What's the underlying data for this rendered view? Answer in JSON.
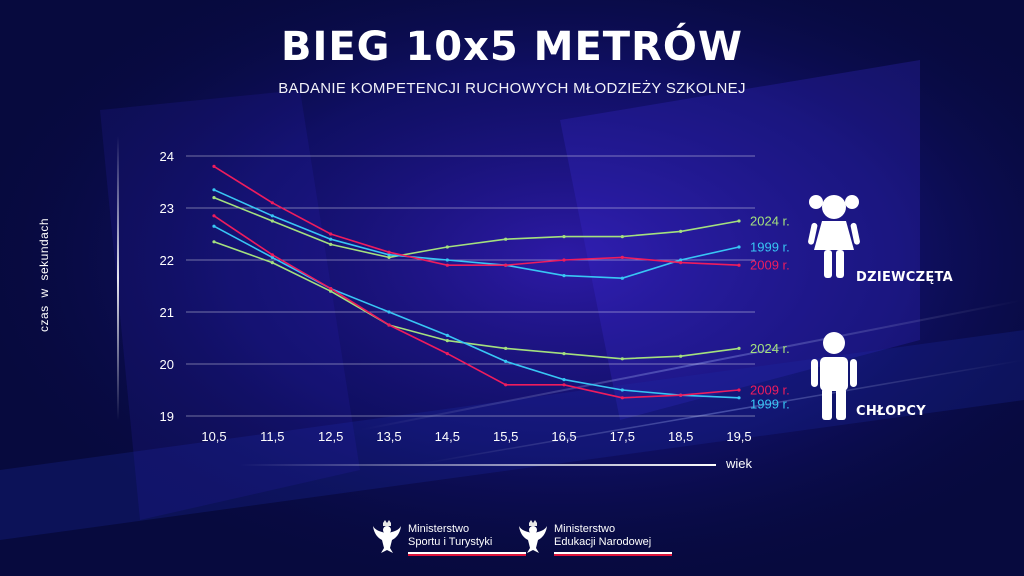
{
  "title": "BIEG 10x5 METRÓW",
  "subtitle": "BADANIE KOMPETENCJI RUCHOWYCH MŁODZIEŻY SZKOLNEJ",
  "groups": {
    "girls": "DZIEWCZĘTA",
    "boys": "CHŁOPCY"
  },
  "logos": [
    {
      "line1": "Ministerstwo",
      "line2": "Sportu i Turystyki"
    },
    {
      "line1": "Ministerstwo",
      "line2": "Edukacji Narodowej"
    }
  ],
  "icons": [
    "eagle-emblem-icon",
    "girl-icon",
    "boy-icon"
  ],
  "colors": {
    "background": "#070a3e",
    "y2024": "#a4e07e",
    "y1999": "#38c6f4",
    "y2009": "#ee1c5d"
  },
  "chart_data": {
    "type": "line",
    "title": "BIEG 10x5 METRÓW",
    "xlabel": "wiek",
    "ylabel": "czas w sekundach",
    "categories": [
      "10,5",
      "11,5",
      "12,5",
      "13,5",
      "14,5",
      "15,5",
      "16,5",
      "17,5",
      "18,5",
      "19,5"
    ],
    "ylim": [
      19,
      24
    ],
    "yticks": [
      19,
      20,
      21,
      22,
      23,
      24
    ],
    "grid": true,
    "series": [
      {
        "name": "2024 r.",
        "group": "girls",
        "color": "#a4e07e",
        "values": [
          23.2,
          22.75,
          22.3,
          22.05,
          22.25,
          22.4,
          22.45,
          22.45,
          22.55,
          22.75
        ]
      },
      {
        "name": "1999 r.",
        "group": "girls",
        "color": "#38c6f4",
        "values": [
          23.35,
          22.85,
          22.4,
          22.1,
          22.0,
          21.9,
          21.7,
          21.65,
          22.0,
          22.25
        ]
      },
      {
        "name": "2009 r.",
        "group": "girls",
        "color": "#ee1c5d",
        "values": [
          23.8,
          23.1,
          22.5,
          22.15,
          21.9,
          21.9,
          22.0,
          22.05,
          21.95,
          21.9
        ]
      },
      {
        "name": "2024 r.",
        "group": "boys",
        "color": "#a4e07e",
        "values": [
          22.35,
          21.95,
          21.4,
          20.75,
          20.45,
          20.3,
          20.2,
          20.1,
          20.15,
          20.3
        ]
      },
      {
        "name": "1999 r.",
        "group": "boys",
        "color": "#38c6f4",
        "values": [
          22.65,
          22.05,
          21.45,
          21.0,
          20.55,
          20.05,
          19.7,
          19.5,
          19.4,
          19.35
        ]
      },
      {
        "name": "2009 r.",
        "group": "boys",
        "color": "#ee1c5d",
        "values": [
          22.85,
          22.1,
          21.45,
          20.75,
          20.2,
          19.6,
          19.6,
          19.35,
          19.4,
          19.5
        ]
      }
    ]
  }
}
